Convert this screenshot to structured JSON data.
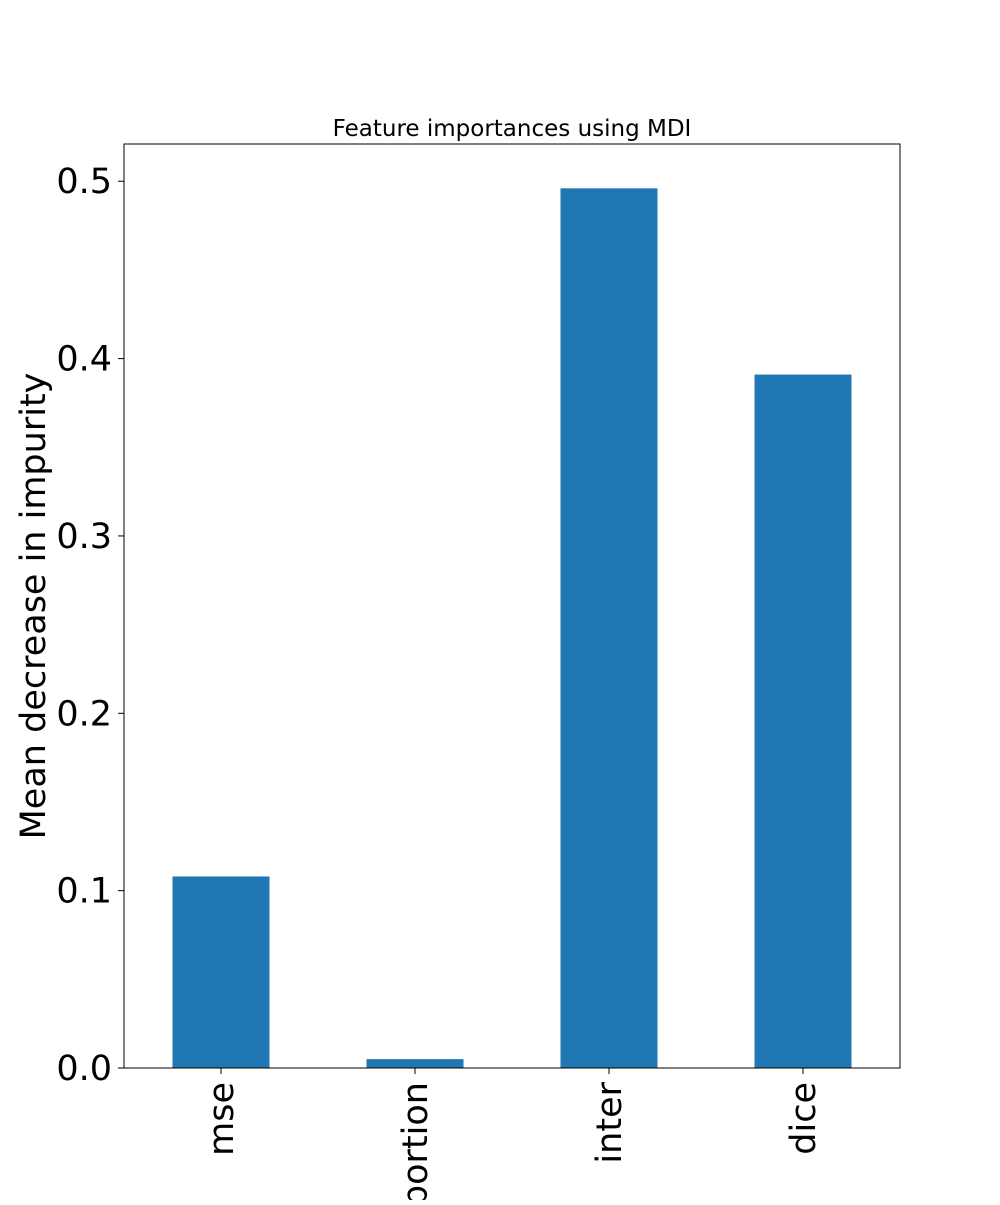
{
  "chart_data": {
    "type": "bar",
    "title": "Feature importances using MDI",
    "xlabel": "",
    "ylabel": "Mean decrease in impurity",
    "categories": [
      "mse",
      "proportion",
      "inter",
      "dice"
    ],
    "values": [
      0.108,
      0.005,
      0.496,
      0.391
    ],
    "ylim": [
      0,
      0.521
    ],
    "yticks": [
      "0.0",
      "0.1",
      "0.2",
      "0.3",
      "0.4",
      "0.5"
    ],
    "grid": false,
    "legend": "none",
    "colors": {
      "bar": "#1f77b4",
      "axis": "#000000",
      "background": "#ffffff"
    }
  }
}
